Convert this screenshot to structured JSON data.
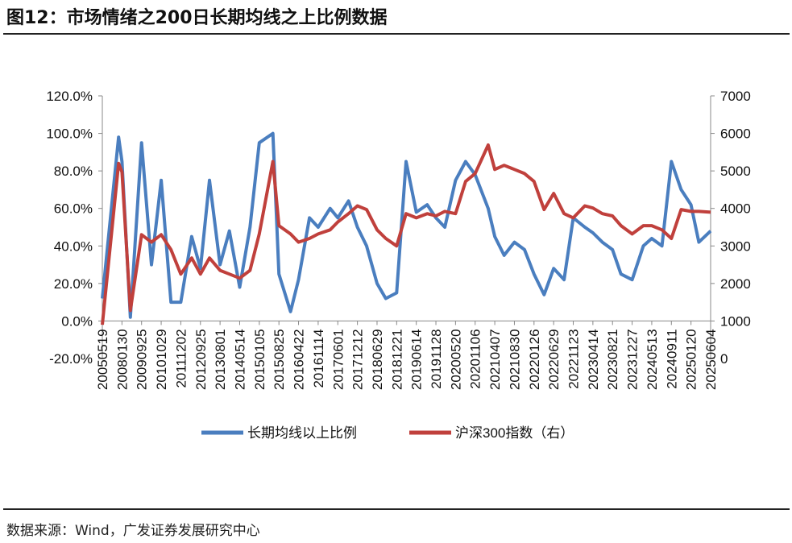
{
  "title": "图12：市场情绪之200日长期均线之上比例数据",
  "source": "数据来源：Wind，广发证券发展研究中心",
  "chart_data": {
    "type": "line",
    "title": "",
    "left_axis": {
      "ticks": [
        "120.0%",
        "100.0%",
        "80.0%",
        "60.0%",
        "40.0%",
        "20.0%",
        "0.0%",
        "-20.0%"
      ],
      "range": [
        -20,
        120
      ]
    },
    "right_axis": {
      "ticks": [
        "7000",
        "6000",
        "5000",
        "4000",
        "3000",
        "2000",
        "1000",
        "0"
      ],
      "range": [
        0,
        7000
      ]
    },
    "categories": [
      "20050519",
      "20080130",
      "20090925",
      "20101029",
      "20111202",
      "20120925",
      "20130801",
      "20140514",
      "20150105",
      "20150825",
      "20160422",
      "20161114",
      "20170601",
      "20171212",
      "20180629",
      "20181221",
      "20190614",
      "20191128",
      "20200520",
      "20201106",
      "20210407",
      "20210830",
      "20220126",
      "20220629",
      "20221123",
      "20230414",
      "20230821",
      "20231227",
      "20240513",
      "20240911",
      "20250120",
      "20250604"
    ],
    "grid": false,
    "legend_placement": "bottom",
    "series": [
      {
        "name": "长期均线以上比例",
        "axis": "left",
        "color": "#4a7ebf",
        "values": [
          [
            "20050519",
            12
          ],
          [
            "20070815",
            98
          ],
          [
            "20080130",
            85
          ],
          [
            "20081015",
            2
          ],
          [
            "20090925",
            95
          ],
          [
            "20100415",
            30
          ],
          [
            "20101029",
            75
          ],
          [
            "20110515",
            10
          ],
          [
            "20111202",
            10
          ],
          [
            "20120515",
            45
          ],
          [
            "20120925",
            28
          ],
          [
            "20130215",
            75
          ],
          [
            "20130801",
            30
          ],
          [
            "20131215",
            48
          ],
          [
            "20140514",
            18
          ],
          [
            "20140915",
            50
          ],
          [
            "20150105",
            95
          ],
          [
            "20150615",
            100
          ],
          [
            "20150825",
            25
          ],
          [
            "20160115",
            5
          ],
          [
            "20160422",
            22
          ],
          [
            "20160815",
            55
          ],
          [
            "20161114",
            50
          ],
          [
            "20170315",
            60
          ],
          [
            "20170601",
            55
          ],
          [
            "20170915",
            64
          ],
          [
            "20171212",
            50
          ],
          [
            "20180315",
            40
          ],
          [
            "20180629",
            20
          ],
          [
            "20180915",
            12
          ],
          [
            "20181221",
            15
          ],
          [
            "20190315",
            85
          ],
          [
            "20190614",
            58
          ],
          [
            "20190915",
            62
          ],
          [
            "20191128",
            55
          ],
          [
            "20200215",
            50
          ],
          [
            "20200520",
            75
          ],
          [
            "20200815",
            85
          ],
          [
            "20201106",
            78
          ],
          [
            "20210215",
            60
          ],
          [
            "20210407",
            45
          ],
          [
            "20210615",
            35
          ],
          [
            "20210830",
            42
          ],
          [
            "20211115",
            38
          ],
          [
            "20220126",
            25
          ],
          [
            "20220415",
            14
          ],
          [
            "20220629",
            28
          ],
          [
            "20220915",
            22
          ],
          [
            "20221123",
            55
          ],
          [
            "20230215",
            50
          ],
          [
            "20230414",
            47
          ],
          [
            "20230615",
            42
          ],
          [
            "20230821",
            38
          ],
          [
            "20231015",
            25
          ],
          [
            "20231227",
            22
          ],
          [
            "20240315",
            40
          ],
          [
            "20240513",
            44
          ],
          [
            "20240715",
            40
          ],
          [
            "20240911",
            85
          ],
          [
            "20241115",
            70
          ],
          [
            "20250120",
            62
          ],
          [
            "20250315",
            42
          ],
          [
            "20250604",
            48
          ]
        ]
      },
      {
        "name": "沪深300指数（右）",
        "axis": "right",
        "color": "#c0403c",
        "values": [
          [
            "20050519",
            900
          ],
          [
            "20070815",
            5200
          ],
          [
            "20080130",
            4970
          ],
          [
            "20081015",
            1280
          ],
          [
            "20090925",
            3300
          ],
          [
            "20100415",
            3100
          ],
          [
            "20101029",
            3300
          ],
          [
            "20110515",
            2900
          ],
          [
            "20111202",
            2250
          ],
          [
            "20120515",
            2680
          ],
          [
            "20120925",
            2250
          ],
          [
            "20130215",
            2680
          ],
          [
            "20130801",
            2350
          ],
          [
            "20131215",
            2250
          ],
          [
            "20140514",
            2140
          ],
          [
            "20140915",
            2350
          ],
          [
            "20150105",
            3320
          ],
          [
            "20150615",
            5250
          ],
          [
            "20150825",
            3540
          ],
          [
            "20160115",
            3320
          ],
          [
            "20160422",
            3100
          ],
          [
            "20160815",
            3200
          ],
          [
            "20161114",
            3320
          ],
          [
            "20170315",
            3430
          ],
          [
            "20170601",
            3640
          ],
          [
            "20170915",
            3860
          ],
          [
            "20171212",
            4070
          ],
          [
            "20180315",
            3970
          ],
          [
            "20180629",
            3430
          ],
          [
            "20180915",
            3200
          ],
          [
            "20181221",
            3000
          ],
          [
            "20190315",
            3860
          ],
          [
            "20190614",
            3750
          ],
          [
            "20190915",
            3860
          ],
          [
            "20191128",
            3800
          ],
          [
            "20200215",
            3920
          ],
          [
            "20200520",
            3860
          ],
          [
            "20200815",
            4720
          ],
          [
            "20201106",
            4930
          ],
          [
            "20210215",
            5690
          ],
          [
            "20210407",
            5040
          ],
          [
            "20210615",
            5150
          ],
          [
            "20210830",
            5040
          ],
          [
            "20211115",
            4930
          ],
          [
            "20220126",
            4720
          ],
          [
            "20220415",
            3970
          ],
          [
            "20220629",
            4400
          ],
          [
            "20220915",
            3860
          ],
          [
            "20221123",
            3750
          ],
          [
            "20230215",
            4070
          ],
          [
            "20230414",
            4010
          ],
          [
            "20230615",
            3860
          ],
          [
            "20230821",
            3800
          ],
          [
            "20231015",
            3540
          ],
          [
            "20231227",
            3320
          ],
          [
            "20240315",
            3540
          ],
          [
            "20240513",
            3540
          ],
          [
            "20240715",
            3430
          ],
          [
            "20240911",
            3200
          ],
          [
            "20241115",
            3970
          ],
          [
            "20250120",
            3920
          ],
          [
            "20250315",
            3920
          ],
          [
            "20250604",
            3900
          ]
        ]
      }
    ]
  }
}
